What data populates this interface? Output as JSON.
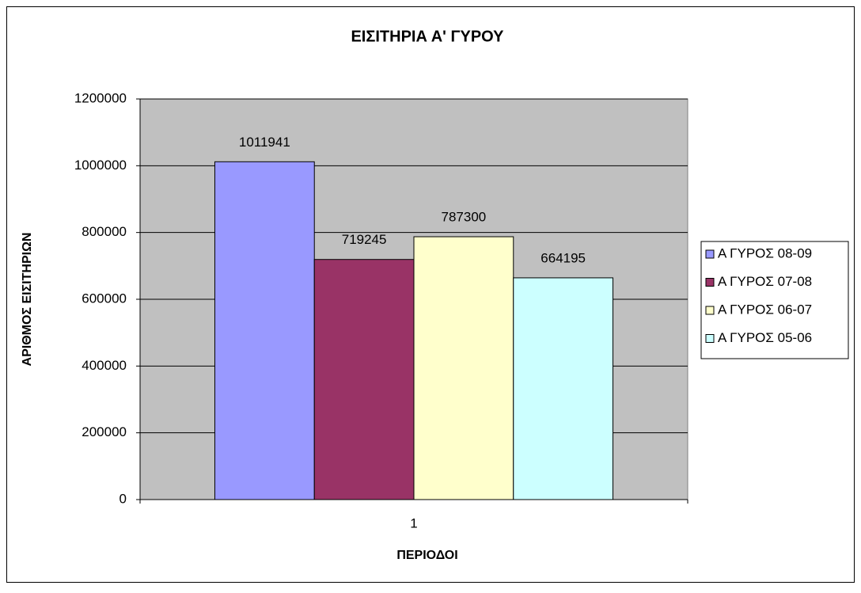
{
  "chart_data": {
    "type": "bar",
    "title": "ΕΙΣΙΤΗΡΙΑ Α' ΓΥΡΟΥ",
    "x_label": "ΠΕΡΙΟΔΟΙ",
    "y_label": "ΑΡΙΘΜΟΣ ΕΙΣΙΤΗΡΙΩΝ",
    "categories": [
      "1"
    ],
    "series": [
      {
        "name": "Α ΓΥΡΟΣ 08-09",
        "color": "#9999ff",
        "values": [
          1011941
        ]
      },
      {
        "name": "Α ΓΥΡΟΣ 07-08",
        "color": "#993366",
        "values": [
          719245
        ]
      },
      {
        "name": "Α ΓΥΡΟΣ 06-07",
        "color": "#ffffcc",
        "values": [
          787300
        ]
      },
      {
        "name": "Α ΓΥΡΟΣ 05-06",
        "color": "#ccffff",
        "values": [
          664195
        ]
      }
    ],
    "ylim": [
      0,
      1200000
    ],
    "yticks": [
      0,
      200000,
      400000,
      600000,
      800000,
      1000000,
      1200000
    ],
    "grid": true,
    "plot_background": "#c0c0c0",
    "legend": "right"
  }
}
